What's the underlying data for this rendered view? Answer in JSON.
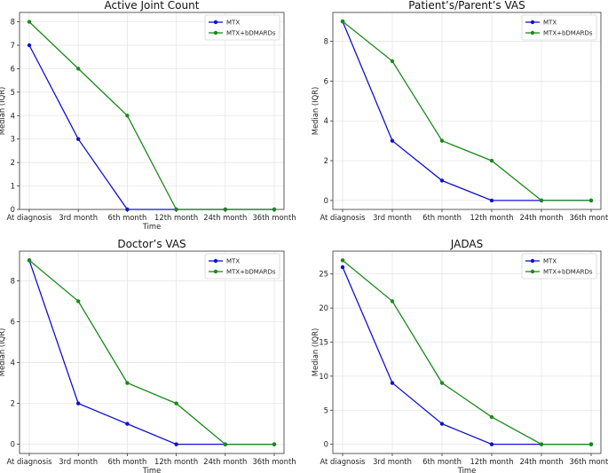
{
  "chart_data": [
    {
      "type": "line",
      "title": "Active Joint Count",
      "xlabel": "Time",
      "ylabel": "Median (IQR)",
      "categories": [
        "At diagnosis",
        "3rd month",
        "6th month",
        "12th month",
        "24th month",
        "36th month"
      ],
      "ylim": [
        0,
        8.4
      ],
      "yticks": [
        0,
        1,
        2,
        3,
        4,
        5,
        6,
        7,
        8
      ],
      "grid": true,
      "legend_position": "top-right",
      "series": [
        {
          "name": "MTX",
          "color": "#1010d0",
          "values": [
            7,
            3,
            0,
            0,
            0,
            0
          ]
        },
        {
          "name": "MTX+bDMARDs",
          "color": "#1a8a1a",
          "values": [
            8,
            6,
            4,
            0,
            0,
            0
          ]
        }
      ]
    },
    {
      "type": "line",
      "title": "Patient’s/Parent’s VAS",
      "xlabel": "",
      "ylabel": "Median (IQR)",
      "categories": [
        "At diagnosis",
        "3rd month",
        "6th month",
        "12th month",
        "24th month",
        "36th month"
      ],
      "ylim": [
        -0.45,
        9.45
      ],
      "yticks": [
        0,
        2,
        4,
        6,
        8
      ],
      "grid": true,
      "legend_position": "top-right",
      "series": [
        {
          "name": "MTX",
          "color": "#1010d0",
          "values": [
            9,
            3,
            1,
            0,
            0,
            0
          ]
        },
        {
          "name": "MTX+bDMARDs",
          "color": "#1a8a1a",
          "values": [
            9,
            7,
            3,
            2,
            0,
            0
          ]
        }
      ]
    },
    {
      "type": "line",
      "title": "Doctor’s VAS",
      "xlabel": "Time",
      "ylabel": "Median (IQR)",
      "categories": [
        "At diagnosis",
        "3rd month",
        "6th month",
        "12th month",
        "24th month",
        "36th month"
      ],
      "ylim": [
        -0.45,
        9.45
      ],
      "yticks": [
        0,
        2,
        4,
        6,
        8
      ],
      "grid": true,
      "legend_position": "top-right",
      "series": [
        {
          "name": "MTX",
          "color": "#1010d0",
          "values": [
            9,
            2,
            1,
            0,
            0,
            0
          ]
        },
        {
          "name": "MTX+bDMARDs",
          "color": "#1a8a1a",
          "values": [
            9,
            7,
            3,
            2,
            0,
            0
          ]
        }
      ]
    },
    {
      "type": "line",
      "title": "JADAS",
      "xlabel": "Time",
      "ylabel": "Median (IQR)",
      "categories": [
        "At diagnosis",
        "3rd month",
        "6th month",
        "12th month",
        "24th month",
        "36th month"
      ],
      "ylim": [
        -1.35,
        28.35
      ],
      "yticks": [
        0,
        5,
        10,
        15,
        20,
        25
      ],
      "grid": true,
      "legend_position": "top-right",
      "series": [
        {
          "name": "MTX",
          "color": "#1010d0",
          "values": [
            26,
            9,
            3,
            0,
            0,
            0
          ]
        },
        {
          "name": "MTX+bDMARDs",
          "color": "#1a8a1a",
          "values": [
            27,
            21,
            9,
            4,
            0,
            0
          ]
        }
      ]
    }
  ]
}
